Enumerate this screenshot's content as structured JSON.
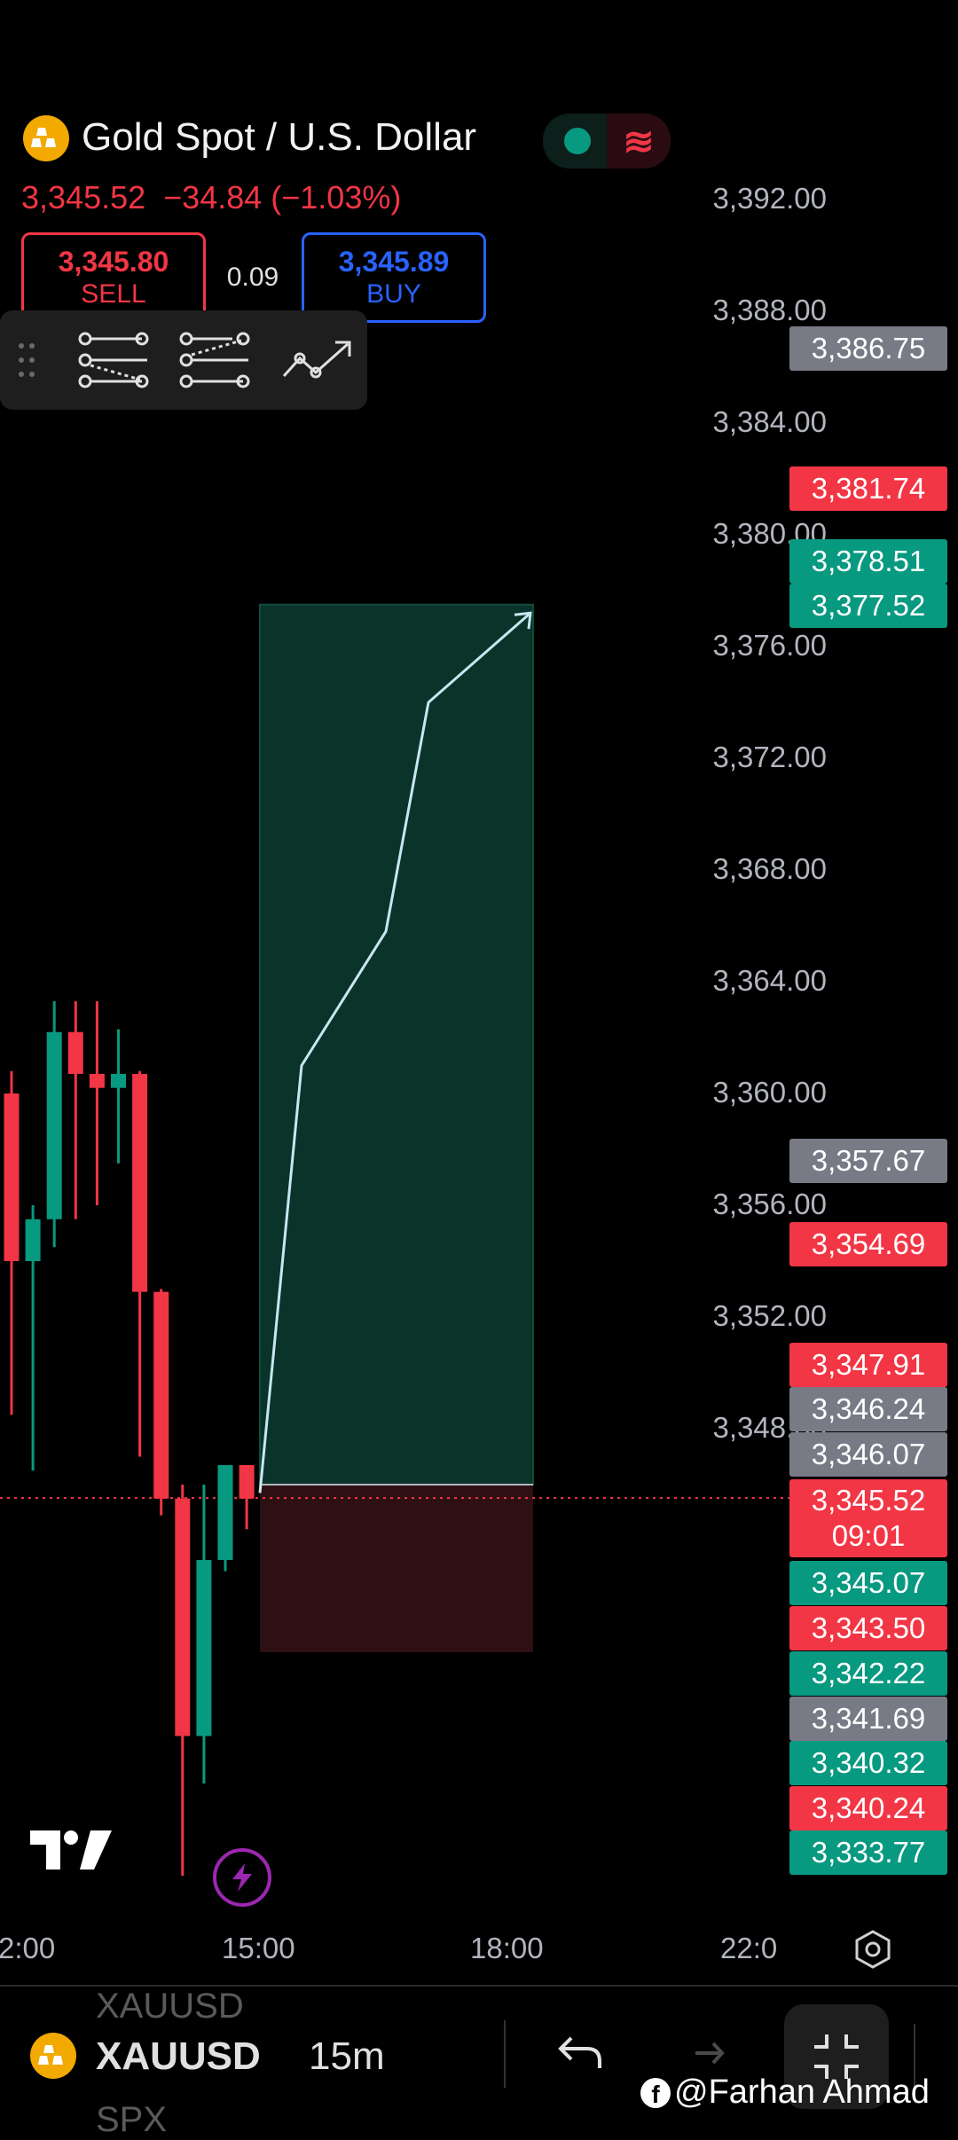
{
  "header": {
    "coin_icon": "gold-bars-icon",
    "title": "Gold Spot / U.S. Dollar",
    "status_colors": {
      "market_open": "#089981",
      "realtime": "#f23645"
    },
    "last_price": "3,345.52",
    "change": "−34.84 (−1.03%)"
  },
  "trade": {
    "sell_price": "3,345.80",
    "sell_label": "SELL",
    "spread": "0.09",
    "buy_price": "3,345.89",
    "buy_label": "BUY"
  },
  "toolbar": {
    "icons": [
      "drag-handle-icon",
      "long-position-icon",
      "short-position-icon",
      "forecast-icon"
    ]
  },
  "price_axis": {
    "ticks": [
      "3,392.00",
      "3,388.00",
      "3,384.00",
      "3,380.00",
      "3,376.00",
      "3,372.00",
      "3,368.00",
      "3,364.00",
      "3,360.00",
      "3,356.00",
      "3,352.00",
      "3,348.00"
    ],
    "labels": [
      {
        "value": "3,386.75",
        "color": "#787b86"
      },
      {
        "value": "3,381.74",
        "color": "#f23645"
      },
      {
        "value": "3,378.51",
        "color": "#089981"
      },
      {
        "value": "3,377.52",
        "color": "#089981"
      },
      {
        "value": "3,357.67",
        "color": "#787b86"
      },
      {
        "value": "3,354.69",
        "color": "#f23645"
      },
      {
        "value": "3,347.91",
        "color": "#f23645"
      },
      {
        "value": "3,346.24",
        "color": "#787b86"
      },
      {
        "value": "3,346.07",
        "color": "#787b86"
      },
      {
        "value": "3,345.07",
        "color": "#089981"
      },
      {
        "value": "3,343.50",
        "color": "#f23645"
      },
      {
        "value": "3,342.22",
        "color": "#089981"
      },
      {
        "value": "3,341.69",
        "color": "#787b86"
      },
      {
        "value": "3,340.32",
        "color": "#089981"
      },
      {
        "value": "3,340.24",
        "color": "#f23645"
      },
      {
        "value": "3,333.77",
        "color": "#089981"
      }
    ],
    "current": {
      "value": "3,345.52",
      "countdown": "09:01",
      "color": "#f23645"
    }
  },
  "time_axis": {
    "labels": [
      "2:00",
      "15:00",
      "18:00",
      "22:0"
    ],
    "settings_icon": "hexagon-settings-icon"
  },
  "chart_data": {
    "type": "candlestick",
    "candles": [
      {
        "o": 3360.0,
        "h": 3360.8,
        "l": 3348.5,
        "c": 3354.0
      },
      {
        "o": 3354.0,
        "h": 3356.0,
        "l": 3346.5,
        "c": 3355.5
      },
      {
        "o": 3355.5,
        "h": 3363.3,
        "l": 3354.5,
        "c": 3362.2
      },
      {
        "o": 3362.2,
        "h": 3363.3,
        "l": 3355.5,
        "c": 3360.7
      },
      {
        "o": 3360.7,
        "h": 3363.3,
        "l": 3356.0,
        "c": 3360.2
      },
      {
        "o": 3360.2,
        "h": 3362.3,
        "l": 3357.5,
        "c": 3360.7
      },
      {
        "o": 3360.7,
        "h": 3360.8,
        "l": 3347.0,
        "c": 3352.9
      },
      {
        "o": 3352.9,
        "h": 3353.0,
        "l": 3344.9,
        "c": 3345.5
      },
      {
        "o": 3345.5,
        "h": 3346.0,
        "l": 3332.0,
        "c": 3337.0
      },
      {
        "o": 3337.0,
        "h": 3346.0,
        "l": 3335.3,
        "c": 3343.3
      },
      {
        "o": 3343.3,
        "h": 3346.7,
        "l": 3342.9,
        "c": 3346.7
      },
      {
        "o": 3346.7,
        "h": 3346.7,
        "l": 3344.4,
        "c": 3345.5
      }
    ],
    "long_position": {
      "entry": 3346.0,
      "target": 3377.5,
      "stop": 3340.0,
      "profit_color": "#0a3329",
      "loss_color": "#2e1014"
    },
    "forecast_path": [
      3345.7,
      3361.0,
      3365.8,
      3374.0,
      3377.2
    ],
    "current_price": 3345.52,
    "ylim": [
      3333.0,
      3396.0
    ],
    "x_labels": [
      "2:00",
      "15:00",
      "18:00",
      "22:0"
    ]
  },
  "bottom": {
    "coin_icon": "gold-bars-icon",
    "symbol": "XAUUSD",
    "interval": "15m",
    "prev_symbol": "XAUUSD",
    "next_symbol": "SPX",
    "undo_icon": "undo-icon",
    "redo_icon": "redo-icon",
    "fullscreen_icon": "collapse-icon",
    "watermark": "@Farhan Ahmad",
    "watermark_icon": "facebook-icon",
    "logo": "tradingview-logo",
    "flash_icon": "lightning-icon"
  }
}
